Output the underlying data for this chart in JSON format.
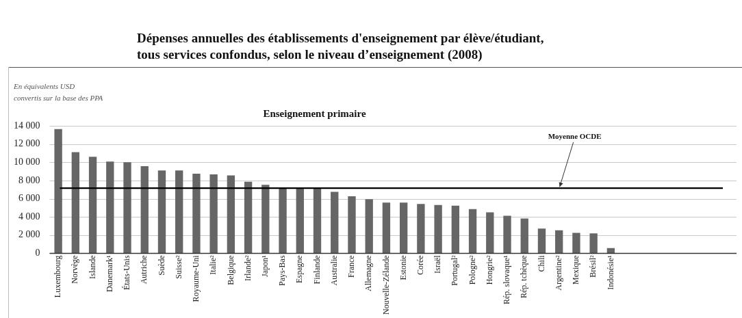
{
  "chart_data": {
    "type": "bar",
    "title": "Dépenses annuelles des établissements d'enseignement par élève/étudiant,\ntous services confondus, selon le niveau d’enseignement (2008)",
    "subtitle": "Enseignement primaire",
    "ylabel": "En équivalents USD\nconvertis sur la base des PPA",
    "categories": [
      "Luxembourg",
      "Norvège",
      "Islande",
      "Danemark¹",
      "États-Unis",
      "Autriche",
      "Suède",
      "Suisse²",
      "Royaume-Uni",
      "Italie²",
      "Belgique",
      "Irlande²",
      "Japon¹",
      "Pays-Bas",
      "Espagne",
      "Finlande",
      "Australie",
      "France",
      "Allemagne",
      "Nouvelle-Zélande",
      "Estonie",
      "Corée",
      "Israël",
      "Portugal²",
      "Pologne²",
      "Hongrie²",
      "Rép. slovaque¹",
      "Rép. tchèque",
      "Chili",
      "Argentine²",
      "Mexique",
      "Brésil²",
      "Indonésie¹"
    ],
    "values": [
      13650,
      11100,
      10600,
      10080,
      10000,
      9570,
      9100,
      9100,
      8750,
      8670,
      8550,
      7850,
      7530,
      7200,
      7150,
      7100,
      6750,
      6260,
      5950,
      5570,
      5570,
      5420,
      5300,
      5230,
      4850,
      4500,
      4120,
      3820,
      2710,
      2520,
      2250,
      2180,
      570
    ],
    "color": "#666666",
    "ylim": [
      0,
      14000
    ],
    "yticks": [
      {
        "value": 0,
        "label": "0"
      },
      {
        "value": 2000,
        "label": "2 000"
      },
      {
        "value": 4000,
        "label": "4 000"
      },
      {
        "value": 6000,
        "label": "6 000"
      },
      {
        "value": 8000,
        "label": "8 000"
      },
      {
        "value": 10000,
        "label": "10 000"
      },
      {
        "value": 12000,
        "label": "12 000"
      },
      {
        "value": 14000,
        "label": "14 000"
      }
    ],
    "grid": "y",
    "legend": false,
    "ref_lines": [
      {
        "axis": "y",
        "value": 7150,
        "label": "Moyenne OCDE",
        "color": "#000000"
      }
    ]
  }
}
